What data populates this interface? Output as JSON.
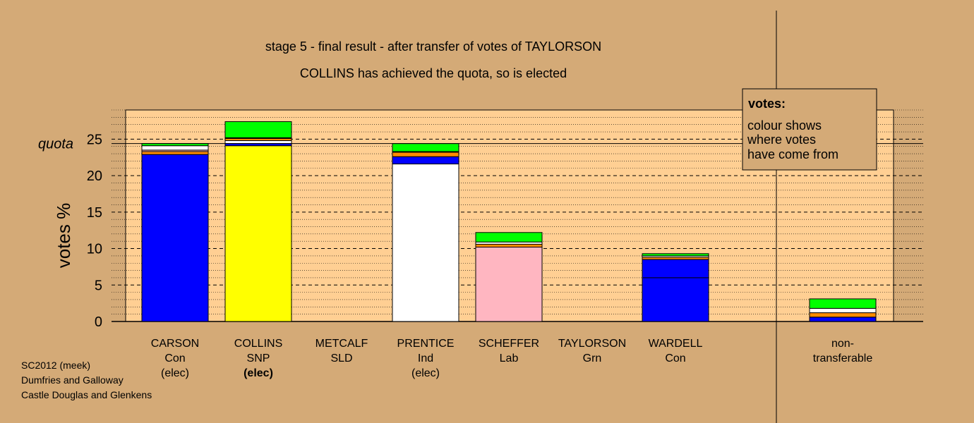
{
  "chart_data": {
    "type": "bar",
    "stacked": true,
    "title": "stage 5 - final result - after transfer of votes of TAYLORSON",
    "subtitle": "COLLINS has achieved the quota, so is elected",
    "ylabel": "votes %",
    "ylim": [
      0,
      29
    ],
    "yticks": [
      "0",
      "5",
      "10",
      "15",
      "20",
      "25"
    ],
    "quota_label": "quota",
    "quota": 24.4,
    "grid": "dotted minor lines every 1%, dashed major lines every 5%",
    "candidates": [
      {
        "name": "CARSON",
        "party": "Con",
        "status": "(elec)",
        "status_bold": false
      },
      {
        "name": "COLLINS",
        "party": "SNP",
        "status": "(elec)",
        "status_bold": true
      },
      {
        "name": "METCALF",
        "party": "SLD",
        "status": "",
        "status_bold": false
      },
      {
        "name": "PRENTICE",
        "party": "Ind",
        "status": "(elec)",
        "status_bold": false
      },
      {
        "name": "SCHEFFER",
        "party": "Lab",
        "status": "",
        "status_bold": false
      },
      {
        "name": "TAYLORSON",
        "party": "Grn",
        "status": "",
        "status_bold": false
      },
      {
        "name": "WARDELL",
        "party": "Con",
        "status": "",
        "status_bold": false
      }
    ],
    "nontransferable": {
      "line1": "non-",
      "line2": "transferable"
    },
    "bars": [
      [
        {
          "value": 22.9,
          "color": "#0000ff"
        },
        {
          "value": 0.4,
          "color": "#ff8c00"
        },
        {
          "value": 0.2,
          "color": "#ffb6c1"
        },
        {
          "value": 0.6,
          "color": "#ffffff"
        },
        {
          "value": 0.3,
          "color": "#00ff00"
        }
      ],
      [
        {
          "value": 24.1,
          "color": "#ffff00"
        },
        {
          "value": 0.3,
          "color": "#0000ff"
        },
        {
          "value": 0.4,
          "color": "#ffffff"
        },
        {
          "value": 0.3,
          "color": "#ff8c00"
        },
        {
          "value": 0.1,
          "color": "#ffb6c1"
        },
        {
          "value": 2.2,
          "color": "#00ff00"
        }
      ],
      [],
      [
        {
          "value": 21.6,
          "color": "#ffffff"
        },
        {
          "value": 1.0,
          "color": "#0000ff"
        },
        {
          "value": 0.6,
          "color": "#ff8c00"
        },
        {
          "value": 0.1,
          "color": "#ffb6c1"
        },
        {
          "value": 1.1,
          "color": "#00ff00"
        }
      ],
      [
        {
          "value": 10.2,
          "color": "#ffb6c1"
        },
        {
          "value": 0.4,
          "color": "#ff8c00"
        },
        {
          "value": 0.3,
          "color": "#ffffff"
        },
        {
          "value": 1.3,
          "color": "#00ff00"
        }
      ],
      [],
      [
        {
          "value": 6.0,
          "color": "#0000ff"
        },
        {
          "value": 2.5,
          "color": "#0000ff"
        },
        {
          "value": 0.3,
          "color": "#ff8c00"
        },
        {
          "value": 0.2,
          "color": "#ffffff"
        },
        {
          "value": 0.3,
          "color": "#00ff00"
        }
      ],
      [
        {
          "value": 0.6,
          "color": "#0000ff"
        },
        {
          "value": 0.6,
          "color": "#ff8c00"
        },
        {
          "value": 0.6,
          "color": "#ffffff"
        },
        {
          "value": 1.3,
          "color": "#00ff00"
        }
      ]
    ],
    "legend": {
      "title": "votes:",
      "lines": [
        "colour shows",
        "where votes",
        "have come from"
      ],
      "placement": "top-right"
    }
  },
  "footer": [
    "SC2012 (meek)",
    "Dumfries and Galloway",
    "Castle Douglas and Glenkens"
  ],
  "colors": {
    "background": "#d4aa77",
    "plot_area": "#ffcf93"
  }
}
